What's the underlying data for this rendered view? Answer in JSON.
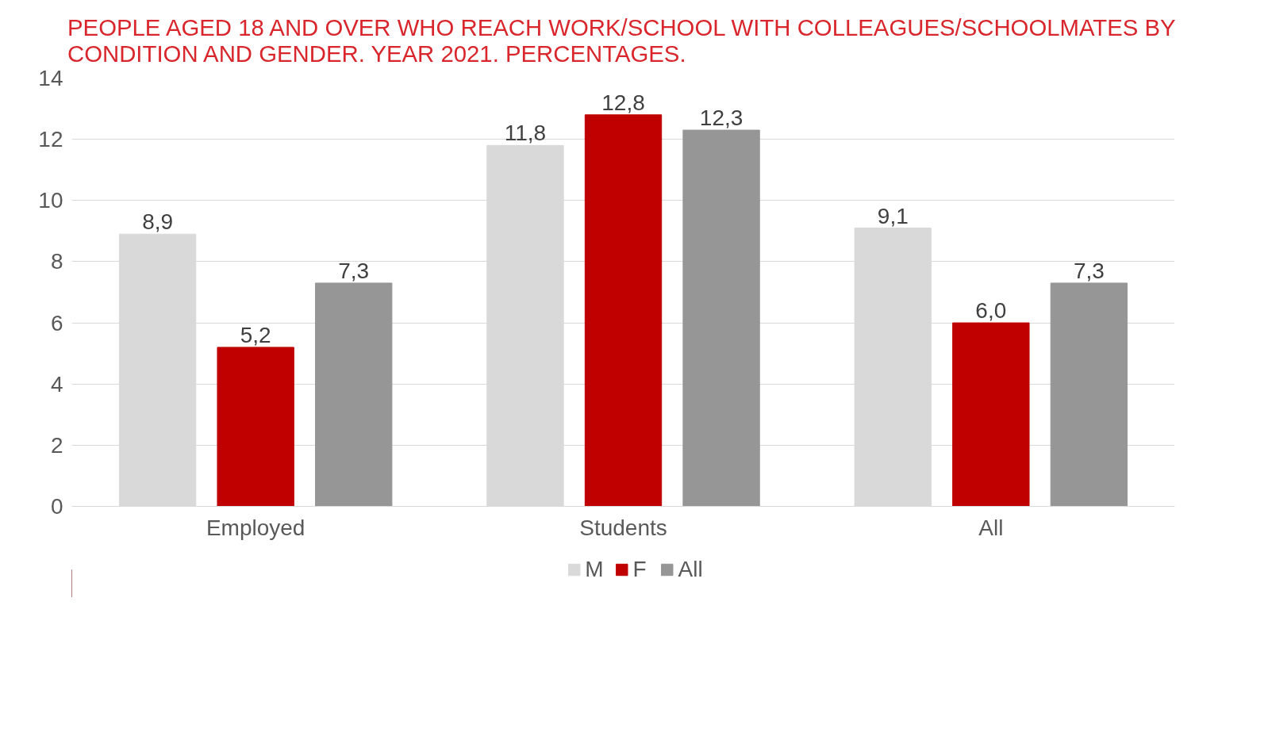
{
  "chart_data": {
    "type": "bar",
    "title": "PEOPLE AGED 18 AND OVER WHO REACH WORK/SCHOOL WITH COLLEAGUES/SCHOOLMATES BY CONDITION AND GENDER. YEAR 2021. PERCENTAGES.",
    "categories": [
      "Employed",
      "Students",
      "All"
    ],
    "series": [
      {
        "name": "M",
        "color": "#d9d9d9",
        "values": [
          8.9,
          11.8,
          9.1
        ],
        "value_labels": [
          "8,9",
          "11,8",
          "9,1"
        ]
      },
      {
        "name": "F",
        "color": "#c00000",
        "values": [
          5.2,
          12.8,
          6.0
        ],
        "value_labels": [
          "5,2",
          "12,8",
          "6,0"
        ]
      },
      {
        "name": "All",
        "color": "#969696",
        "values": [
          7.3,
          12.3,
          7.3
        ],
        "value_labels": [
          "7,3",
          "12,3",
          "7,3"
        ]
      }
    ],
    "ylim": [
      0,
      14
    ],
    "yticks": [
      0,
      2,
      4,
      6,
      8,
      10,
      12,
      14
    ],
    "grid": "y",
    "legend": "bottom"
  }
}
